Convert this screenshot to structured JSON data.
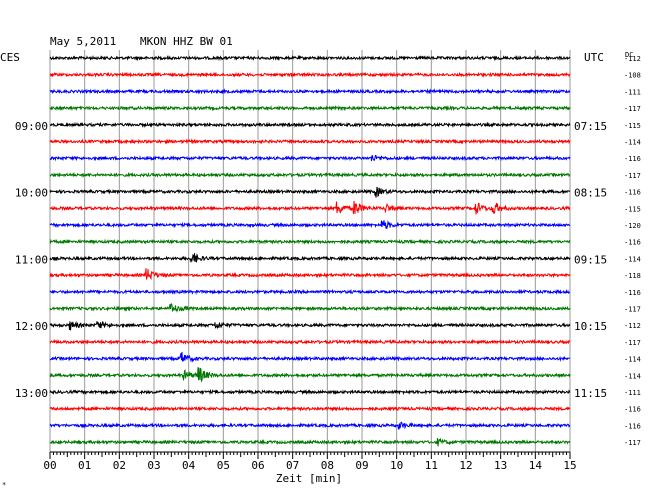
{
  "header": {
    "date": "May 5,2011",
    "station": "MKON HHZ BW 01",
    "left_tz": "CES",
    "right_tz": "UTC",
    "dc_label": "DC"
  },
  "chart_data": {
    "type": "line",
    "title": "May 5,2011   MKON HHZ BW 01",
    "xlabel": "Zeit [min]",
    "x_ticks": [
      "00",
      "01",
      "02",
      "03",
      "04",
      "05",
      "06",
      "07",
      "08",
      "09",
      "10",
      "11",
      "12",
      "13",
      "14",
      "15"
    ],
    "xlim": [
      0,
      15
    ],
    "trace_colors": [
      "#000000",
      "#ff0000",
      "#0000ff",
      "#007700"
    ],
    "left_hour_labels": [
      {
        "row": 4,
        "text": "09:00"
      },
      {
        "row": 8,
        "text": "10:00"
      },
      {
        "row": 12,
        "text": "11:00"
      },
      {
        "row": 16,
        "text": "12:00"
      },
      {
        "row": 20,
        "text": "13:00"
      }
    ],
    "right_hour_labels": [
      {
        "row": 4,
        "text": "07:15"
      },
      {
        "row": 8,
        "text": "08:15"
      },
      {
        "row": 12,
        "text": "09:15"
      },
      {
        "row": 16,
        "text": "10:15"
      },
      {
        "row": 20,
        "text": "11:15"
      }
    ],
    "dc_offsets": [
      -112,
      -108,
      -111,
      -117,
      -115,
      -114,
      -116,
      -117,
      -116,
      -115,
      -120,
      -116,
      -114,
      -118,
      -116,
      -117,
      -112,
      -117,
      -114,
      -114,
      -111,
      -116,
      -116,
      -117
    ],
    "events": [
      {
        "row": 6,
        "minute": 9.3,
        "amp": 3
      },
      {
        "row": 8,
        "minute": 9.4,
        "amp": 5
      },
      {
        "row": 9,
        "minute": 8.3,
        "amp": 6
      },
      {
        "row": 9,
        "minute": 8.8,
        "amp": 7
      },
      {
        "row": 9,
        "minute": 9.7,
        "amp": 4
      },
      {
        "row": 9,
        "minute": 12.3,
        "amp": 6
      },
      {
        "row": 9,
        "minute": 12.8,
        "amp": 6
      },
      {
        "row": 10,
        "minute": 9.6,
        "amp": 5
      },
      {
        "row": 12,
        "minute": 4.1,
        "amp": 6
      },
      {
        "row": 13,
        "minute": 2.8,
        "amp": 6
      },
      {
        "row": 15,
        "minute": 3.5,
        "amp": 5
      },
      {
        "row": 16,
        "minute": 0.6,
        "amp": 4
      },
      {
        "row": 16,
        "minute": 1.4,
        "amp": 4
      },
      {
        "row": 16,
        "minute": 4.8,
        "amp": 3
      },
      {
        "row": 18,
        "minute": 3.8,
        "amp": 6
      },
      {
        "row": 19,
        "minute": 4.3,
        "amp": 8
      },
      {
        "row": 19,
        "minute": 3.9,
        "amp": 4
      },
      {
        "row": 22,
        "minute": 10.1,
        "amp": 3
      },
      {
        "row": 23,
        "minute": 11.2,
        "amp": 3
      }
    ]
  }
}
